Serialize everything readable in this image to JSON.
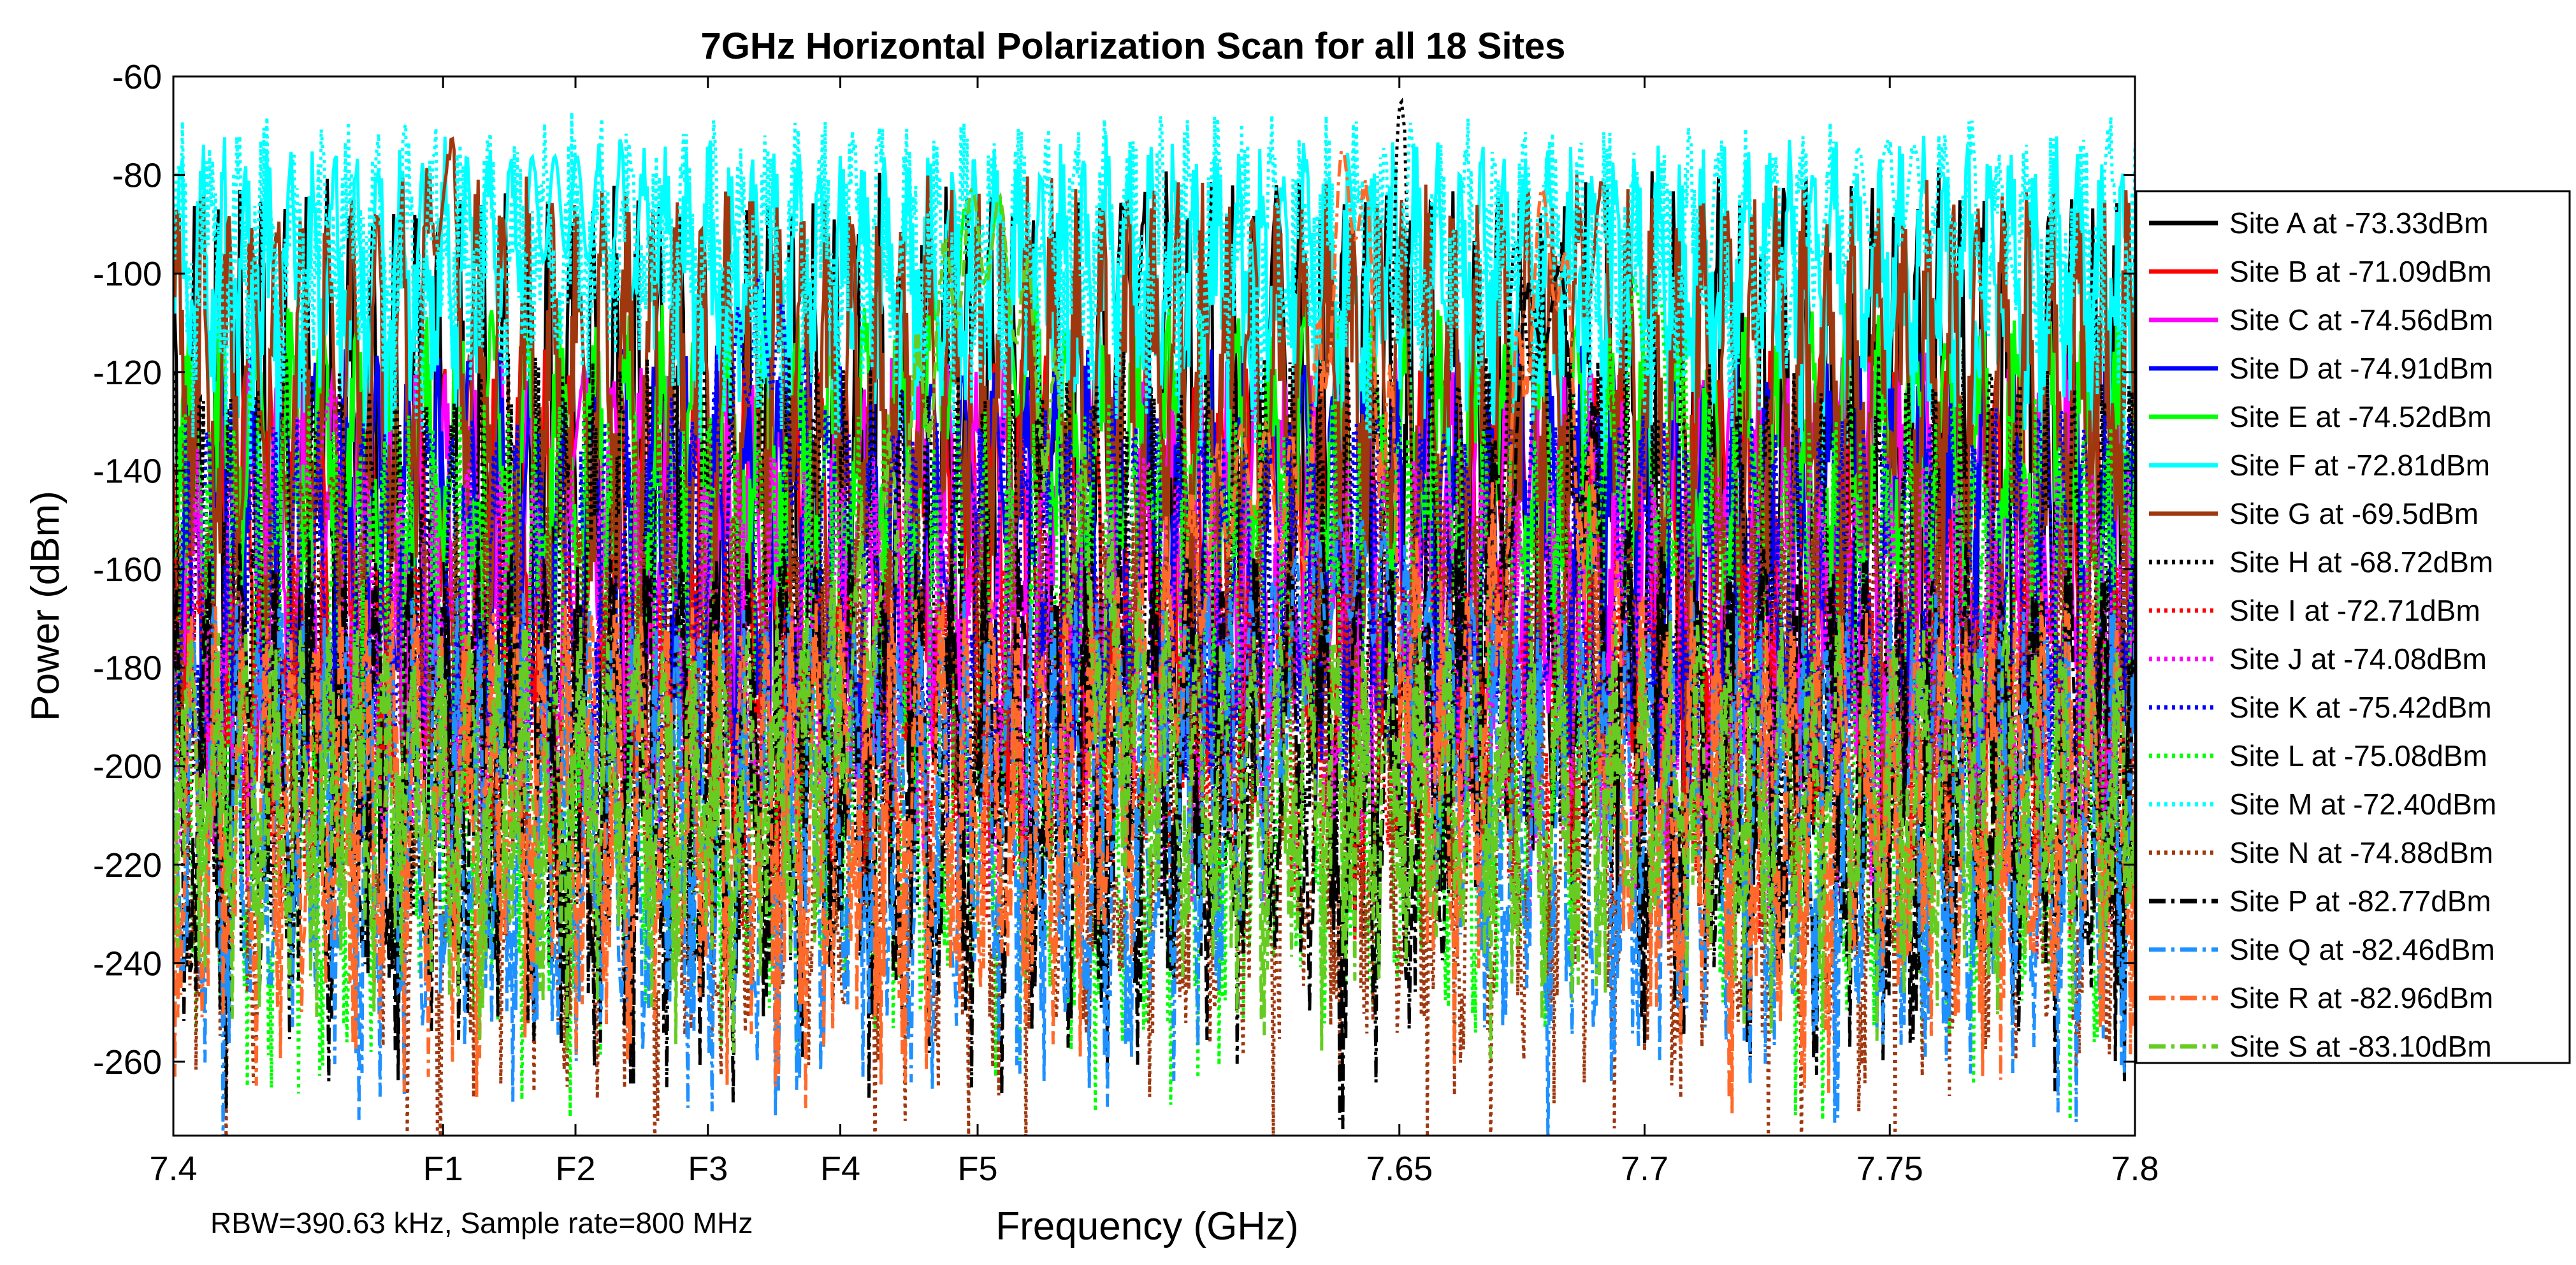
{
  "chart_data": {
    "type": "line",
    "title": "7GHz Horizontal Polarization Scan for all 18 Sites",
    "xlabel": "Frequency (GHz)",
    "ylabel": "Power (dBm)",
    "xlim": [
      7.4,
      7.8
    ],
    "ylim": [
      -275,
      -60
    ],
    "grid": false,
    "legend_position": "right",
    "annotation": "RBW=390.63 kHz, Sample rate=800 MHz",
    "yticks": [
      -60,
      -80,
      -100,
      -120,
      -140,
      -160,
      -180,
      -200,
      -220,
      -240,
      -260
    ],
    "xticks": [
      {
        "value": 7.4,
        "label": "7.4"
      },
      {
        "value": 7.455,
        "label": "F1"
      },
      {
        "value": 7.482,
        "label": "F2"
      },
      {
        "value": 7.509,
        "label": "F3"
      },
      {
        "value": 7.536,
        "label": "F4"
      },
      {
        "value": 7.564,
        "label": "F5"
      },
      {
        "value": 7.65,
        "label": "7.65"
      },
      {
        "value": 7.7,
        "label": "7.7"
      },
      {
        "value": 7.75,
        "label": "7.75"
      },
      {
        "value": 7.8,
        "label": "7.8"
      }
    ],
    "series": [
      {
        "name": "Site A at -73.33dBm",
        "color": "#000000",
        "style": "solid",
        "floor": -200,
        "top": -84,
        "amp": 28,
        "peaks": [
          {
            "x": 7.595,
            "y": -86,
            "w": 0.006
          },
          {
            "x": 7.625,
            "y": -86,
            "w": 0.004
          }
        ]
      },
      {
        "name": "Site B at -71.09dBm",
        "color": "#ff0000",
        "style": "solid",
        "floor": -185,
        "top": -118,
        "amp": 18,
        "peaks": [
          {
            "x": 7.455,
            "y": -160,
            "w": 0.006
          },
          {
            "x": 7.509,
            "y": -160,
            "w": 0.004
          }
        ]
      },
      {
        "name": "Site C at -74.56dBm",
        "color": "#ff00ff",
        "style": "solid",
        "floor": -175,
        "top": -120,
        "amp": 22,
        "peaks": [
          {
            "x": 7.482,
            "y": -120,
            "w": 0.006
          }
        ]
      },
      {
        "name": "Site D at -74.91dBm",
        "color": "#0000ff",
        "style": "solid",
        "floor": -180,
        "top": -118,
        "amp": 22,
        "peaks": [
          {
            "x": 7.565,
            "y": -130,
            "w": 0.012
          }
        ]
      },
      {
        "name": "Site E at -74.52dBm",
        "color": "#00ff00",
        "style": "solid",
        "floor": -150,
        "top": -110,
        "amp": 22,
        "peaks": [
          {
            "x": 7.565,
            "y": -82,
            "w": 0.01
          },
          {
            "x": 7.6,
            "y": -130,
            "w": 0.01
          }
        ]
      },
      {
        "name": "Site F at -72.81dBm",
        "color": "#00ffff",
        "style": "solid",
        "floor": -108,
        "top": -76,
        "amp": 24,
        "peaks": [
          {
            "x": 7.48,
            "y": -76,
            "w": 0.02
          }
        ]
      },
      {
        "name": "Site G at -69.5dBm",
        "color": "#a0380f",
        "style": "solid",
        "floor": -140,
        "top": -85,
        "amp": 30,
        "peaks": [
          {
            "x": 7.455,
            "y": -69,
            "w": 0.004
          },
          {
            "x": 7.69,
            "y": -80,
            "w": 0.004
          }
        ]
      },
      {
        "name": "Site H at -68.72dBm",
        "color": "#000000",
        "style": "dotted",
        "floor": -205,
        "top": -120,
        "amp": 28,
        "peaks": [
          {
            "x": 7.65,
            "y": -63,
            "w": 0.003
          },
          {
            "x": 7.675,
            "y": -92,
            "w": 0.006
          }
        ]
      },
      {
        "name": "Site I at -72.71dBm",
        "color": "#ff0000",
        "style": "dotted",
        "floor": -205,
        "top": -160,
        "amp": 24,
        "peaks": [
          {
            "x": 7.455,
            "y": -165,
            "w": 0.005
          }
        ]
      },
      {
        "name": "Site J at -74.08dBm",
        "color": "#ff00ff",
        "style": "dotted",
        "floor": -200,
        "top": -140,
        "amp": 24,
        "peaks": [
          {
            "x": 7.43,
            "y": -120,
            "w": 0.006
          }
        ]
      },
      {
        "name": "Site K at -75.42dBm",
        "color": "#0000ff",
        "style": "dotted",
        "floor": -185,
        "top": -130,
        "amp": 22,
        "peaks": [
          {
            "x": 7.52,
            "y": -100,
            "w": 0.01
          }
        ]
      },
      {
        "name": "Site L at -75.08dBm",
        "color": "#00ff00",
        "style": "dotted",
        "floor": -230,
        "top": -130,
        "amp": 30,
        "peaks": [
          {
            "x": 7.7,
            "y": -100,
            "w": 0.01
          }
        ]
      },
      {
        "name": "Site M at -72.40dBm",
        "color": "#00ffff",
        "style": "dotted",
        "floor": -100,
        "top": -72,
        "amp": 26,
        "peaks": [
          {
            "x": 7.75,
            "y": -74,
            "w": 0.02
          }
        ]
      },
      {
        "name": "Site N at -74.88dBm",
        "color": "#a0380f",
        "style": "dotted",
        "floor": -235,
        "top": -150,
        "amp": 34,
        "peaks": [
          {
            "x": 7.43,
            "y": -140,
            "w": 0.006
          }
        ]
      },
      {
        "name": "Site P at -82.77dBm",
        "color": "#000000",
        "style": "dashdot",
        "floor": -225,
        "top": -160,
        "amp": 34,
        "peaks": [
          {
            "x": 7.68,
            "y": -95,
            "w": 0.012
          }
        ]
      },
      {
        "name": "Site Q at -82.46dBm",
        "color": "#1e90ff",
        "style": "dashdot",
        "floor": -235,
        "top": -170,
        "amp": 30,
        "peaks": [
          {
            "x": 7.64,
            "y": -150,
            "w": 0.02
          }
        ]
      },
      {
        "name": "Site R at -82.96dBm",
        "color": "#ff6a2a",
        "style": "dashdot",
        "floor": -225,
        "top": -170,
        "amp": 32,
        "peaks": [
          {
            "x": 7.64,
            "y": -72,
            "w": 0.01
          },
          {
            "x": 7.68,
            "y": -82,
            "w": 0.01
          },
          {
            "x": 7.62,
            "y": -130,
            "w": 0.02
          }
        ]
      },
      {
        "name": "Site S at -83.10dBm",
        "color": "#66cc22",
        "style": "dashdot",
        "floor": -215,
        "top": -175,
        "amp": 30,
        "peaks": [
          {
            "x": 7.565,
            "y": -82,
            "w": 0.022
          }
        ]
      }
    ]
  }
}
